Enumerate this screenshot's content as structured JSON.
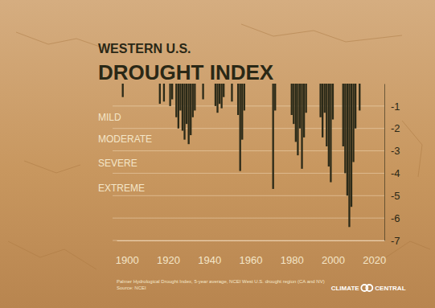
{
  "chart_data": {
    "type": "bar",
    "title": [
      "WESTERN U.S.",
      "DROUGHT INDEX"
    ],
    "x": [
      1898,
      1916,
      1918,
      1921,
      1922,
      1924,
      1925,
      1926,
      1927,
      1928,
      1929,
      1930,
      1931,
      1932,
      1933,
      1937,
      1943,
      1944,
      1945,
      1946,
      1947,
      1951,
      1954,
      1955,
      1956,
      1957,
      1971,
      1972,
      1980,
      1981,
      1982,
      1983,
      1984,
      1985,
      1986,
      1987,
      1994,
      1995,
      1996,
      1997,
      1998,
      1999,
      2000,
      2005,
      2006,
      2007,
      2008,
      2009,
      2010,
      2011,
      2013
    ],
    "values": [
      -0.6,
      -0.9,
      -0.8,
      -1.0,
      -0.7,
      -1.5,
      -2.0,
      -1.2,
      -2.1,
      -2.5,
      -1.8,
      -2.7,
      -2.3,
      -1.5,
      -1.2,
      -0.7,
      -1.0,
      -1.3,
      -0.9,
      -1.1,
      -0.6,
      -0.8,
      -1.4,
      -3.9,
      -2.5,
      -1.2,
      -4.7,
      -1.2,
      -1.4,
      -1.8,
      -2.6,
      -3.2,
      -2.0,
      -3.8,
      -2.4,
      -1.3,
      -1.5,
      -2.4,
      -1.3,
      -2.8,
      -3.7,
      -4.4,
      -1.6,
      -2.8,
      -4.0,
      -5.0,
      -6.4,
      -5.5,
      -3.5,
      -2.0,
      -1.2
    ],
    "color": "#2b2a18",
    "xlim": [
      1895,
      2025
    ],
    "xticks": [
      1900,
      1920,
      1940,
      1960,
      1980,
      2000,
      2020
    ],
    "ylim": [
      0,
      -7
    ],
    "yticks": [
      -1,
      -2,
      -3,
      -4,
      -5,
      -6,
      -7
    ],
    "grid": true,
    "annotations": [
      {
        "text": "MILD",
        "y": -1.55
      },
      {
        "text": "MODERATE",
        "y": -2.5
      },
      {
        "text": "SEVERE",
        "y": -3.6
      },
      {
        "text": "EXTREME",
        "y": -4.7
      }
    ],
    "notes": [
      "Palmer Hydrological Drought Index, 5-year average, NCEI West U.S. drought region (CA and NV)",
      "Source: NCEI"
    ],
    "credit": [
      "CLIMATE",
      "CENTRAL"
    ]
  }
}
